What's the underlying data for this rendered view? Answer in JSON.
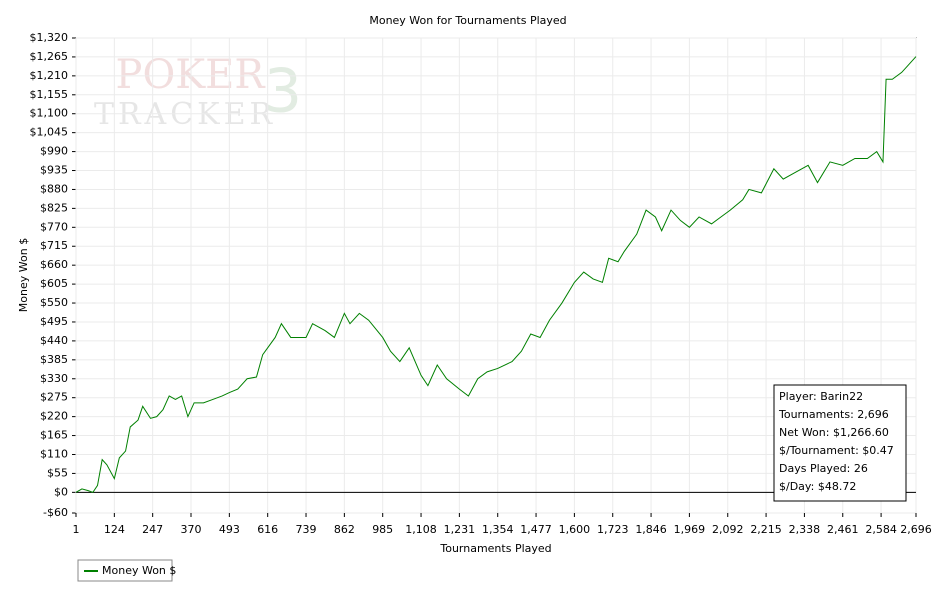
{
  "chart_data": {
    "type": "line",
    "title": "Money Won for Tournaments Played",
    "x_label": "Tournaments Played",
    "y_label": "Money Won $",
    "watermark": [
      "POKER",
      "TRACKER",
      "3"
    ],
    "stats": [
      "Player: Barin22",
      "Tournaments: 2,696",
      "Net Won: $1,266.60",
      "$/Tournament: $0.47",
      "Days Played: 26",
      "$/Day: $48.72"
    ],
    "grid": true,
    "legend": "bottom-left",
    "xlim": [
      1,
      2696
    ],
    "xticks": [
      1,
      124,
      247,
      370,
      493,
      616,
      739,
      862,
      985,
      {
        "value": 1108,
        "label": "1,108"
      },
      {
        "value": 1231,
        "label": "1,231"
      },
      {
        "value": 1354,
        "label": "1,354"
      },
      {
        "value": 1477,
        "label": "1,477"
      },
      {
        "value": 1600,
        "label": "1,600"
      },
      {
        "value": 1723,
        "label": "1,723"
      },
      {
        "value": 1846,
        "label": "1,846"
      },
      {
        "value": 1969,
        "label": "1,969"
      },
      {
        "value": 2092,
        "label": "2,092"
      },
      {
        "value": 2215,
        "label": "2,215"
      },
      {
        "value": 2338,
        "label": "2,338"
      },
      {
        "value": 2461,
        "label": "2,461"
      },
      {
        "value": 2584,
        "label": "2,584"
      },
      {
        "value": 2696,
        "label": "2,696"
      }
    ],
    "ylim": [
      -60,
      1320
    ],
    "yticks": [
      {
        "value": -60,
        "label": "-$60"
      },
      {
        "value": 0,
        "label": "$0"
      },
      {
        "value": 55,
        "label": "$55"
      },
      {
        "value": 110,
        "label": "$110"
      },
      {
        "value": 165,
        "label": "$165"
      },
      {
        "value": 220,
        "label": "$220"
      },
      {
        "value": 275,
        "label": "$275"
      },
      {
        "value": 330,
        "label": "$330"
      },
      {
        "value": 385,
        "label": "$385"
      },
      {
        "value": 440,
        "label": "$440"
      },
      {
        "value": 495,
        "label": "$495"
      },
      {
        "value": 550,
        "label": "$550"
      },
      {
        "value": 605,
        "label": "$605"
      },
      {
        "value": 660,
        "label": "$660"
      },
      {
        "value": 715,
        "label": "$715"
      },
      {
        "value": 770,
        "label": "$770"
      },
      {
        "value": 825,
        "label": "$825"
      },
      {
        "value": 880,
        "label": "$880"
      },
      {
        "value": 935,
        "label": "$935"
      },
      {
        "value": 990,
        "label": "$990"
      },
      {
        "value": 1045,
        "label": "$1,045"
      },
      {
        "value": 1100,
        "label": "$1,100"
      },
      {
        "value": 1155,
        "label": "$1,155"
      },
      {
        "value": 1210,
        "label": "$1,210"
      },
      {
        "value": 1265,
        "label": "$1,265"
      },
      {
        "value": 1320,
        "label": "$1,320"
      }
    ],
    "x": [
      1,
      20,
      40,
      55,
      70,
      85,
      100,
      124,
      140,
      160,
      175,
      200,
      215,
      240,
      260,
      280,
      300,
      320,
      340,
      360,
      380,
      410,
      440,
      470,
      493,
      520,
      550,
      580,
      600,
      616,
      640,
      660,
      690,
      739,
      760,
      800,
      830,
      862,
      880,
      910,
      940,
      985,
      1010,
      1040,
      1070,
      1108,
      1130,
      1160,
      1190,
      1231,
      1260,
      1290,
      1320,
      1354,
      1400,
      1430,
      1460,
      1490,
      1520,
      1560,
      1600,
      1630,
      1660,
      1690,
      1710,
      1740,
      1760,
      1800,
      1830,
      1860,
      1880,
      1910,
      1940,
      1969,
      2000,
      2040,
      2070,
      2100,
      2140,
      2160,
      2200,
      2240,
      2270,
      2310,
      2350,
      2380,
      2420,
      2461,
      2500,
      2540,
      2570,
      2590,
      2600,
      2620,
      2650,
      2670,
      2696
    ],
    "series": [
      {
        "name": "Money Won $",
        "color": "#008000",
        "values": [
          0,
          10,
          5,
          0,
          20,
          95,
          80,
          40,
          100,
          120,
          190,
          210,
          250,
          215,
          220,
          240,
          280,
          270,
          280,
          220,
          260,
          260,
          270,
          280,
          290,
          300,
          330,
          335,
          400,
          420,
          450,
          490,
          450,
          450,
          490,
          470,
          450,
          520,
          490,
          520,
          500,
          450,
          410,
          380,
          420,
          340,
          310,
          370,
          330,
          300,
          280,
          330,
          350,
          360,
          380,
          410,
          460,
          450,
          500,
          550,
          610,
          640,
          620,
          610,
          680,
          670,
          700,
          750,
          820,
          800,
          760,
          820,
          790,
          770,
          800,
          780,
          800,
          820,
          850,
          880,
          870,
          940,
          910,
          930,
          950,
          900,
          960,
          950,
          970,
          970,
          990,
          960,
          1200,
          1200,
          1220,
          1240,
          1266
        ]
      }
    ]
  }
}
